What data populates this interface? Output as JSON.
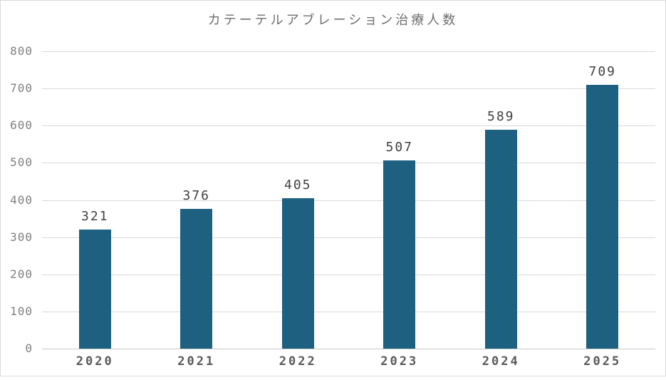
{
  "window": {
    "background": "#ffffff",
    "frame_border": "#d9d9d9"
  },
  "chart_data": {
    "type": "bar",
    "title": "カテーテルアブレーション治療人数",
    "categories": [
      "2020",
      "2021",
      "2022",
      "2023",
      "2024",
      "2025"
    ],
    "values": [
      321,
      376,
      405,
      507,
      589,
      709
    ],
    "xlabel": "",
    "ylabel": "",
    "ylim": [
      0,
      800
    ],
    "yticks": [
      0,
      100,
      200,
      300,
      400,
      500,
      600,
      700,
      800
    ],
    "grid": true,
    "legend": false,
    "show_value_labels": true
  },
  "colors": {
    "bar": "#1e6080",
    "gridline": "#d9d9d9",
    "axis_line": "#c9c9c9",
    "title_text": "#6e6e6e",
    "ytick_text": "#7f7f7f",
    "xtick_text": "#595959",
    "value_label_text": "#404040"
  }
}
